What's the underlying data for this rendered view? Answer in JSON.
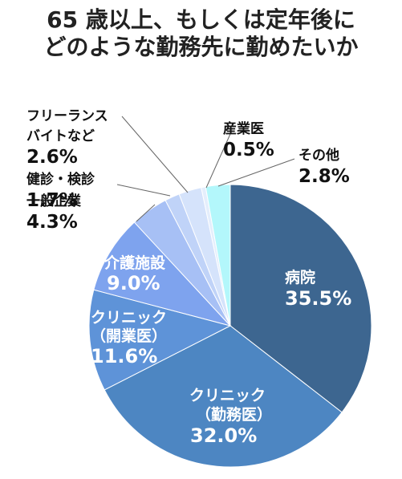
{
  "title": {
    "line1": "65 歳以上、もしくは定年後に",
    "line2": "どのような勤務先に勤めたいか"
  },
  "chart_data": {
    "type": "pie",
    "title": "65 歳以上、もしくは定年後にどのような勤務先に勤めたいか",
    "unit": "%",
    "start_angle_deg": 0,
    "direction": "clockwise",
    "slices": [
      {
        "name": "病院",
        "value": 35.5,
        "value_label": "35.5%",
        "color": "#3d6690",
        "label_lines": [
          "病院"
        ],
        "label_placement": "inside"
      },
      {
        "name": "クリニック（勤務医）",
        "value": 32.0,
        "value_label": "32.0%",
        "color": "#4d86c2",
        "label_lines": [
          "クリニック",
          "（勤務医）"
        ],
        "label_placement": "inside"
      },
      {
        "name": "クリニック（開業医）",
        "value": 11.6,
        "value_label": "11.6%",
        "color": "#5e93d8",
        "label_lines": [
          "クリニック",
          "（開業医）"
        ],
        "label_placement": "inside"
      },
      {
        "name": "介護施設",
        "value": 9.0,
        "value_label": "9.0%",
        "color": "#7ea3ee",
        "label_lines": [
          "介護施設"
        ],
        "label_placement": "inside"
      },
      {
        "name": "一般企業",
        "value": 4.3,
        "value_label": "4.3%",
        "color": "#a7c0f5",
        "label_lines": [
          "一般企業"
        ],
        "label_placement": "outside"
      },
      {
        "name": "健診・検診",
        "value": 1.7,
        "value_label": "1.7%",
        "color": "#c0d3f8",
        "label_lines": [
          "健診・検診"
        ],
        "label_placement": "outside"
      },
      {
        "name": "フリーランスバイトなど",
        "value": 2.6,
        "value_label": "2.6%",
        "color": "#d5e3fb",
        "label_lines": [
          "フリーランス",
          "バイトなど"
        ],
        "label_placement": "outside"
      },
      {
        "name": "産業医",
        "value": 0.5,
        "value_label": "0.5%",
        "color": "#e4eefc",
        "label_lines": [
          "産業医"
        ],
        "label_placement": "outside"
      },
      {
        "name": "その他",
        "value": 2.8,
        "value_label": "2.8%",
        "color": "#b3f7fb",
        "label_lines": [
          "その他"
        ],
        "label_placement": "outside"
      }
    ]
  }
}
